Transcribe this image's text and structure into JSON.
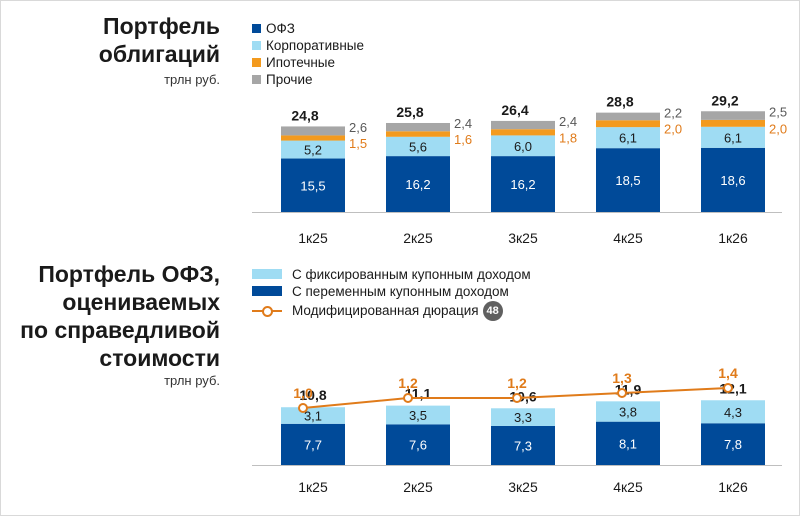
{
  "chart_data": [
    {
      "type": "bar",
      "stacked": true,
      "title_lines": [
        "Портфель",
        "облигаций"
      ],
      "unit": "трлн руб.",
      "categories": [
        "1к25",
        "2к25",
        "3к25",
        "4к25",
        "1к26"
      ],
      "totals": [
        "24,8",
        "25,8",
        "26,4",
        "28,8",
        "29,2"
      ],
      "legend_placement": "top-left",
      "series": [
        {
          "name": "ОФЗ",
          "color": "#004a99",
          "values": [
            15.5,
            16.2,
            16.2,
            18.5,
            18.6
          ],
          "labels": [
            "15,5",
            "16,2",
            "16,2",
            "18,5",
            "18,6"
          ]
        },
        {
          "name": "Корпоративные",
          "color": "#9fdcf3",
          "values": [
            5.2,
            5.6,
            6.0,
            6.1,
            6.1
          ],
          "labels": [
            "5,2",
            "5,6",
            "6,0",
            "6,1",
            "6,1"
          ]
        },
        {
          "name": "Ипотечные",
          "color": "#f39a1e",
          "values": [
            1.5,
            1.6,
            1.8,
            2.0,
            2.0
          ],
          "labels": [
            "1,5",
            "1,6",
            "1,8",
            "2,0",
            "2,0"
          ]
        },
        {
          "name": "Прочие",
          "color": "#a6a6a6",
          "values": [
            2.6,
            2.4,
            2.4,
            2.2,
            2.5
          ],
          "labels": [
            "2,6",
            "2,4",
            "2,4",
            "2,2",
            "2,5"
          ]
        }
      ]
    },
    {
      "type": "bar",
      "stacked": true,
      "title_lines": [
        "Портфель ОФЗ,",
        "оцениваемых",
        "по справедливой",
        "стоимости"
      ],
      "unit": "трлн руб.",
      "categories": [
        "1к25",
        "2к25",
        "3к25",
        "4к25",
        "1к26"
      ],
      "totals": [
        "10,8",
        "11,1",
        "10,6",
        "11,9",
        "12,1"
      ],
      "legend_placement": "top-left",
      "series": [
        {
          "name": "С переменным купонным доходом",
          "color": "#004a99",
          "values": [
            7.7,
            7.6,
            7.3,
            8.1,
            7.8
          ],
          "labels": [
            "7,7",
            "7,6",
            "7,3",
            "8,1",
            "7,8"
          ]
        },
        {
          "name": "С фиксированным купонным доходом",
          "color": "#9fdcf3",
          "values": [
            3.1,
            3.5,
            3.3,
            3.8,
            4.3
          ],
          "labels": [
            "3,1",
            "3,5",
            "3,3",
            "3,8",
            "4,3"
          ]
        }
      ],
      "legend_order": [
        1,
        0
      ],
      "line": {
        "name": "Модифицированная дюрация",
        "badge": "48",
        "color": "#e07b1a",
        "values": [
          1.0,
          1.2,
          1.2,
          1.3,
          1.4
        ],
        "labels": [
          "1,0",
          "1,2",
          "1,2",
          "1,3",
          "1,4"
        ]
      }
    }
  ]
}
